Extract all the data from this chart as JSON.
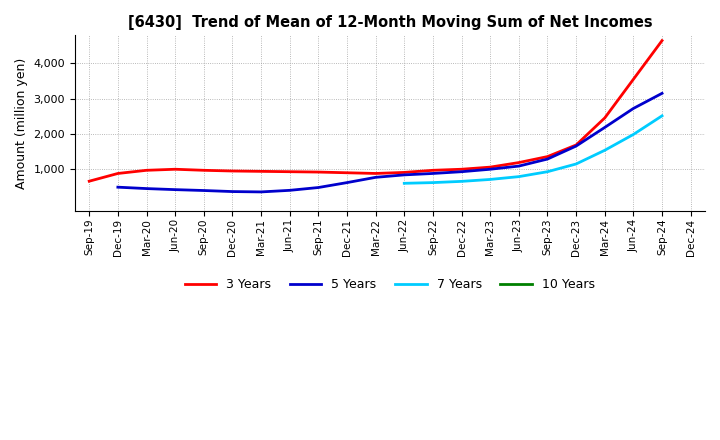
{
  "title": "[6430]  Trend of Mean of 12-Month Moving Sum of Net Incomes",
  "ylabel": "Amount (million yen)",
  "background_color": "#ffffff",
  "plot_background": "#ffffff",
  "grid_color": "#999999",
  "x_ticks": [
    "Sep-19",
    "Dec-19",
    "Mar-20",
    "Jun-20",
    "Sep-20",
    "Dec-20",
    "Mar-21",
    "Jun-21",
    "Sep-21",
    "Dec-21",
    "Mar-22",
    "Jun-22",
    "Sep-22",
    "Dec-22",
    "Mar-23",
    "Jun-23",
    "Sep-23",
    "Dec-23",
    "Mar-24",
    "Jun-24",
    "Sep-24",
    "Dec-24"
  ],
  "ylim": [
    -200,
    4800
  ],
  "yticks": [
    1000,
    2000,
    3000,
    4000
  ],
  "series": {
    "3 Years": {
      "color": "#ff0000",
      "values": [
        650,
        870,
        960,
        990,
        960,
        940,
        930,
        920,
        910,
        890,
        870,
        900,
        960,
        990,
        1050,
        1180,
        1350,
        1680,
        2450,
        3550,
        4650,
        null
      ]
    },
    "5 Years": {
      "color": "#0000cc",
      "values": [
        null,
        480,
        440,
        410,
        385,
        355,
        345,
        390,
        470,
        610,
        760,
        830,
        870,
        920,
        990,
        1080,
        1280,
        1650,
        2180,
        2720,
        3150,
        null
      ]
    },
    "7 Years": {
      "color": "#00ccff",
      "values": [
        null,
        null,
        null,
        null,
        null,
        null,
        null,
        null,
        null,
        null,
        null,
        590,
        610,
        645,
        700,
        780,
        920,
        1140,
        1530,
        1980,
        2510,
        null
      ]
    },
    "10 Years": {
      "color": "#008000",
      "values": [
        null,
        null,
        null,
        null,
        null,
        null,
        null,
        null,
        null,
        null,
        null,
        null,
        null,
        null,
        null,
        null,
        null,
        null,
        null,
        null,
        null,
        null
      ]
    }
  },
  "legend": {
    "labels": [
      "3 Years",
      "5 Years",
      "7 Years",
      "10 Years"
    ],
    "colors": [
      "#ff0000",
      "#0000cc",
      "#00ccff",
      "#008000"
    ]
  }
}
